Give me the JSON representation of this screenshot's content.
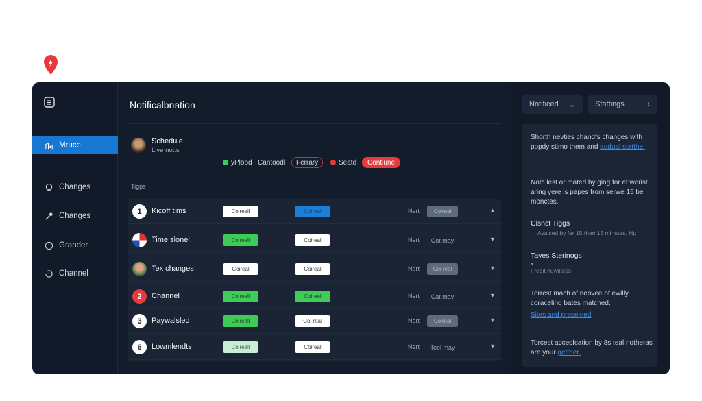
{
  "logo_icon": "map-pin-flash-icon",
  "sidebar": {
    "items": [
      {
        "label": "Mruce",
        "icon": "buildings-icon",
        "active": true
      },
      {
        "label": "Changes",
        "icon": "user-search-icon"
      },
      {
        "label": "Changes",
        "icon": "key-icon"
      },
      {
        "label": "Grander",
        "icon": "clock-icon"
      },
      {
        "label": "Channel",
        "icon": "history-icon"
      }
    ]
  },
  "main": {
    "title": "Notificalbnation",
    "schedule": {
      "name": "Schedule",
      "sub": "Live notts"
    },
    "chips": {
      "a": "yPlood",
      "b": "Cantoodl",
      "c": "Ferrary",
      "d": "Seatd",
      "e": "Contiune"
    },
    "section": "Tigps",
    "more": "...",
    "rows": [
      {
        "marker": "1",
        "marker_style": "white",
        "name": "Kicoff tims",
        "b1": "Coireall",
        "b1s": "white",
        "b2": "Coireal",
        "b2s": "blue",
        "nert": "Nert",
        "b3": "Coireal",
        "b3s": "gray",
        "arrow": "▲"
      },
      {
        "marker": "",
        "marker_style": "flag",
        "name": "Time slonel",
        "b1": "Coireall",
        "b1s": "green",
        "b2": "Coireal",
        "b2s": "white",
        "nert": "Nert",
        "b3": "Cot may",
        "b3s": "text",
        "arrow": "▼"
      },
      {
        "marker": "",
        "marker_style": "avatar",
        "name": "Tex changes",
        "b1": "Coireal",
        "b1s": "white",
        "b2": "Coireal",
        "b2s": "white",
        "nert": "Nert",
        "b3": "Coi real",
        "b3s": "gray",
        "arrow": "▼"
      },
      {
        "marker": "2",
        "marker_style": "red",
        "name": "Channel",
        "b1": "Coireall",
        "b1s": "green",
        "b2": "Coireel",
        "b2s": "green",
        "nert": "Nert",
        "b3": "Cat may",
        "b3s": "text",
        "arrow": "▼"
      },
      {
        "marker": "3",
        "marker_style": "white",
        "name": "Paywalsled",
        "b1": "Coireall",
        "b1s": "green",
        "b2": "Coi real",
        "b2s": "white",
        "nert": "Nert",
        "b3": "Coireal",
        "b3s": "gray",
        "arrow": "▼"
      },
      {
        "marker": "6",
        "marker_style": "white",
        "name": "Lowmlendts",
        "b1": "Coireall",
        "b1s": "pale",
        "b2": "Coireal",
        "b2s": "white",
        "nert": "Nert",
        "b3": "Toel may",
        "b3s": "text",
        "arrow": "▼"
      }
    ]
  },
  "right": {
    "notified": "Notificed",
    "settings": "Stattings",
    "p1": "Shorth nevties chandfs changes with popdy stimo them and",
    "p1_link": "audual statthe.",
    "p2": "Notc lest or mated by ging for at worist aring yere is papes from serwe 15 be monctes.",
    "h1": "Cisnct Tiggs",
    "h1_sub": "Avalsed by fer 15 than 15 minutes. Hp",
    "h2": "Taves Sterinogs",
    "h2_sub": "Frebit nuwlistes",
    "p3": "Torrest mach of neovee of ewilly coraceling bates matched.",
    "p3_link": "Sites and preseined",
    "p4": "Torcest accesfcation by 8s teal notheras are your",
    "p4_link": "getther."
  },
  "colors": {
    "accent": "#1877d2",
    "green": "#3ecb58",
    "red": "#e8393c",
    "bg": "#131c2b"
  }
}
